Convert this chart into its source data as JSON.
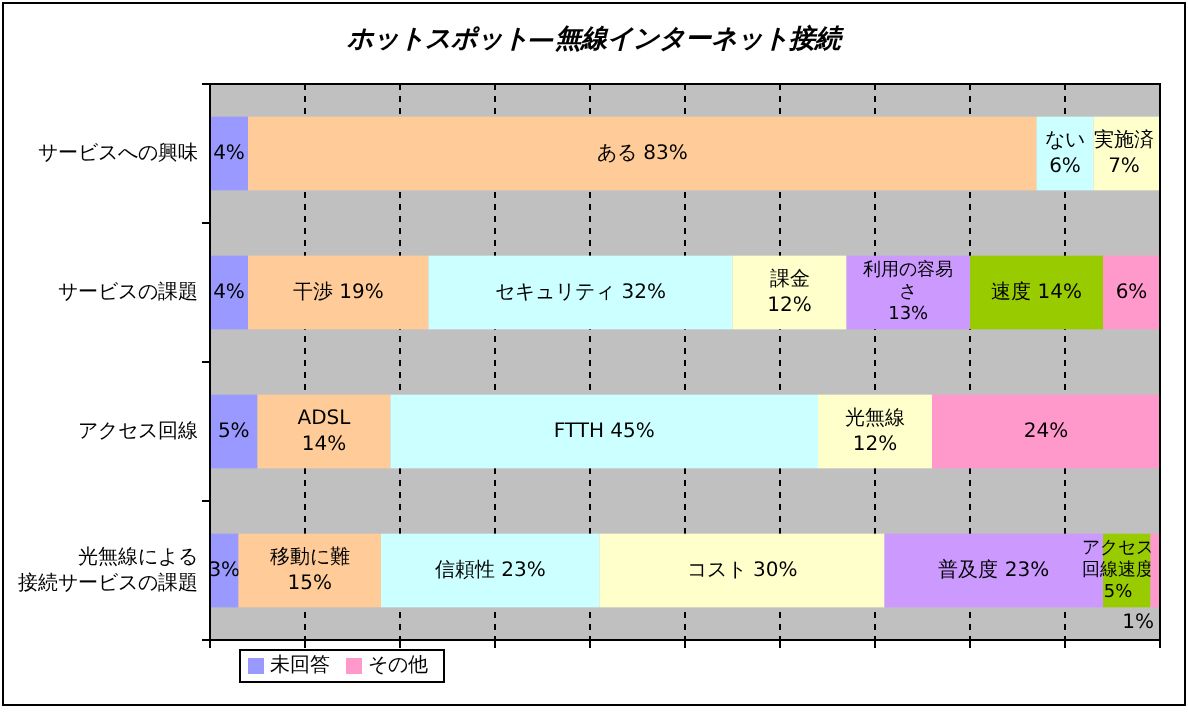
{
  "chart_data": {
    "type": "bar",
    "orientation": "horizontal",
    "stacked": true,
    "title": "ホットスポット—無線インターネット接続",
    "categories": [
      "サービスへの興味",
      "サービスの課題",
      "アクセス回線",
      "光無線による接続サービスの課題"
    ],
    "series": [
      {
        "name": "未回答",
        "color": "#9999ff",
        "values": [
          4,
          4,
          5,
          3
        ],
        "value_labels": [
          "4%",
          "4%",
          "5%",
          "3%"
        ]
      },
      {
        "color": "#ffcc99",
        "values": [
          83,
          19,
          14,
          15
        ],
        "value_labels": [
          "ある 83%",
          "干渉 19%",
          "ADSL 14%",
          "移動に難 15%"
        ]
      },
      {
        "color": "#ccffff",
        "values": [
          6,
          32,
          45,
          23
        ],
        "value_labels": [
          "ない 6%",
          "セキュリティ 32%",
          "FTTH 45%",
          "信頼性 23%"
        ]
      },
      {
        "color": "#ffffcc",
        "values": [
          7,
          12,
          12,
          30
        ],
        "value_labels": [
          "実施済 7%",
          "課金 12%",
          "光無線 12%",
          "コスト 30%"
        ]
      },
      {
        "color": "#cc99ff",
        "values": [
          null,
          13,
          null,
          23
        ],
        "value_labels": [
          null,
          "利用の容易さ 13%",
          null,
          "普及度 23%"
        ]
      },
      {
        "color": "#99cc00",
        "values": [
          null,
          14,
          null,
          5
        ],
        "value_labels": [
          null,
          "速度 14%",
          null,
          "アクセス回線速度 5%"
        ]
      },
      {
        "name": "その他",
        "color": "#ff99cc",
        "values": [
          null,
          6,
          24,
          1
        ],
        "value_labels": [
          null,
          "6%",
          "24%",
          "1%"
        ]
      }
    ],
    "xlim": [
      0,
      100
    ],
    "xticks": [
      {
        "value": 0,
        "label": null
      },
      {
        "value": 10,
        "label": null
      },
      {
        "value": 20,
        "label": null
      },
      {
        "value": 30,
        "label": null
      },
      {
        "value": 40,
        "label": null
      },
      {
        "value": 50,
        "label": null
      },
      {
        "value": 60,
        "label": null
      },
      {
        "value": 70,
        "label": null
      },
      {
        "value": 80,
        "label": null
      },
      {
        "value": 90,
        "label": null
      },
      {
        "value": 100,
        "label": null
      }
    ],
    "grid": "x",
    "tick_labels": "y",
    "legend": "bottom"
  }
}
